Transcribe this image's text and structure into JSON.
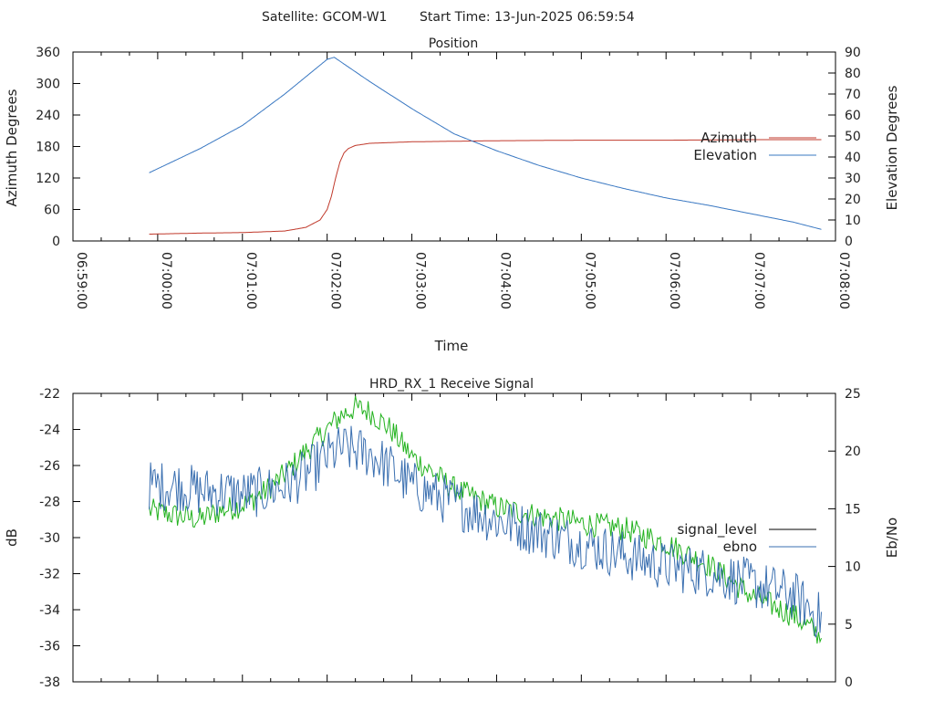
{
  "header": {
    "satellite": "Satellite: GCOM-W1",
    "start_time": "Start Time: 13-Jun-2025 06:59:54"
  },
  "colors": {
    "azimuth": "#c0392b",
    "elevation": "#3a78c2",
    "ebno": "#3a6fb0",
    "signal_green": "#22b21e",
    "signal_level_key": "#000000"
  },
  "chart_data": [
    {
      "type": "line",
      "title": "Position",
      "xlabel": "Time",
      "ylabel": "Azimuth Degrees",
      "y2label": "Elevation Degrees",
      "xlim": [
        "06:59:00",
        "07:08:00"
      ],
      "ylim": [
        0,
        360
      ],
      "y2lim": [
        0,
        90
      ],
      "x_ticks": [
        "06:59:00",
        "07:00:00",
        "07:01:00",
        "07:02:00",
        "07:03:00",
        "07:04:00",
        "07:05:00",
        "07:06:00",
        "07:07:00",
        "07:08:00"
      ],
      "y_ticks": [
        "0",
        "60",
        "120",
        "180",
        "240",
        "300",
        "360"
      ],
      "y2_ticks": [
        "0",
        "10",
        "20",
        "30",
        "40",
        "50",
        "60",
        "70",
        "80",
        "90"
      ],
      "legend": "right",
      "series": [
        {
          "name": "Azimuth",
          "axis": "left",
          "color": "#c0392b",
          "x": [
            "06:59:54",
            "07:00:30",
            "07:01:00",
            "07:01:30",
            "07:01:45",
            "07:01:55",
            "07:02:00",
            "07:02:03",
            "07:02:06",
            "07:02:09",
            "07:02:12",
            "07:02:15",
            "07:02:20",
            "07:02:30",
            "07:03:00",
            "07:04:00",
            "07:05:00",
            "07:06:00",
            "07:07:00",
            "07:07:50"
          ],
          "values": [
            13,
            15,
            16,
            19,
            26,
            40,
            60,
            85,
            120,
            150,
            168,
            176,
            182,
            186,
            189,
            191,
            192,
            192,
            193,
            193
          ]
        },
        {
          "name": "Elevation",
          "axis": "right",
          "color": "#3a78c2",
          "x": [
            "06:59:54",
            "07:00:30",
            "07:01:00",
            "07:01:30",
            "07:02:00",
            "07:02:05",
            "07:02:30",
            "07:03:00",
            "07:03:30",
            "07:04:00",
            "07:04:30",
            "07:05:00",
            "07:05:30",
            "07:06:00",
            "07:06:30",
            "07:07:00",
            "07:07:30",
            "07:07:50"
          ],
          "values": [
            32.5,
            44,
            55,
            70,
            86.5,
            87.5,
            76,
            63,
            51,
            43,
            36,
            30,
            25,
            20.5,
            17,
            13,
            9,
            5.5
          ]
        }
      ]
    },
    {
      "type": "line",
      "title": "HRD_RX_1 Receive Signal",
      "xlabel": "",
      "ylabel": "dB",
      "y2label": "Eb/No",
      "xlim": [
        "06:59:00",
        "07:08:00"
      ],
      "ylim": [
        -38,
        -22
      ],
      "y2lim": [
        0,
        25
      ],
      "y_ticks": [
        "-22",
        "-24",
        "-26",
        "-28",
        "-30",
        "-32",
        "-34",
        "-36",
        "-38"
      ],
      "y2_ticks": [
        "0",
        "5",
        "10",
        "15",
        "20",
        "25"
      ],
      "legend": "right",
      "series": [
        {
          "name": "signal_level",
          "axis": "left",
          "color": "#22b21e",
          "x": [
            "06:59:54",
            "07:00:15",
            "07:00:30",
            "07:00:45",
            "07:01:00",
            "07:01:15",
            "07:01:30",
            "07:01:45",
            "07:02:00",
            "07:02:10",
            "07:02:20",
            "07:02:30",
            "07:02:45",
            "07:03:00",
            "07:03:30",
            "07:04:00",
            "07:04:30",
            "07:05:00",
            "07:05:30",
            "07:06:00",
            "07:06:30",
            "07:07:00",
            "07:07:30",
            "07:07:50"
          ],
          "values": [
            -28.5,
            -28.8,
            -29.0,
            -28.5,
            -28.2,
            -27.5,
            -26.5,
            -25.2,
            -24.0,
            -23.2,
            -22.8,
            -23.0,
            -24.0,
            -25.5,
            -27.3,
            -28.3,
            -28.8,
            -29.2,
            -29.5,
            -30.3,
            -31.5,
            -33.2,
            -34.3,
            -35.5
          ]
        },
        {
          "name": "ebno",
          "axis": "right",
          "color": "#3a6fb0",
          "x": [
            "06:59:54",
            "07:00:15",
            "07:00:30",
            "07:00:45",
            "07:01:00",
            "07:01:15",
            "07:01:30",
            "07:01:45",
            "07:02:00",
            "07:02:10",
            "07:02:20",
            "07:02:30",
            "07:02:45",
            "07:03:00",
            "07:03:30",
            "07:04:00",
            "07:04:30",
            "07:05:00",
            "07:05:30",
            "07:06:00",
            "07:06:30",
            "07:07:00",
            "07:07:30",
            "07:07:50"
          ],
          "values": [
            17,
            17,
            16.5,
            16.5,
            16.2,
            16.5,
            17,
            18,
            19.5,
            20.2,
            20,
            19.8,
            18.5,
            17,
            15.5,
            14,
            13,
            12,
            11,
            10,
            9.5,
            8.5,
            7.5,
            5.5
          ]
        }
      ]
    }
  ]
}
